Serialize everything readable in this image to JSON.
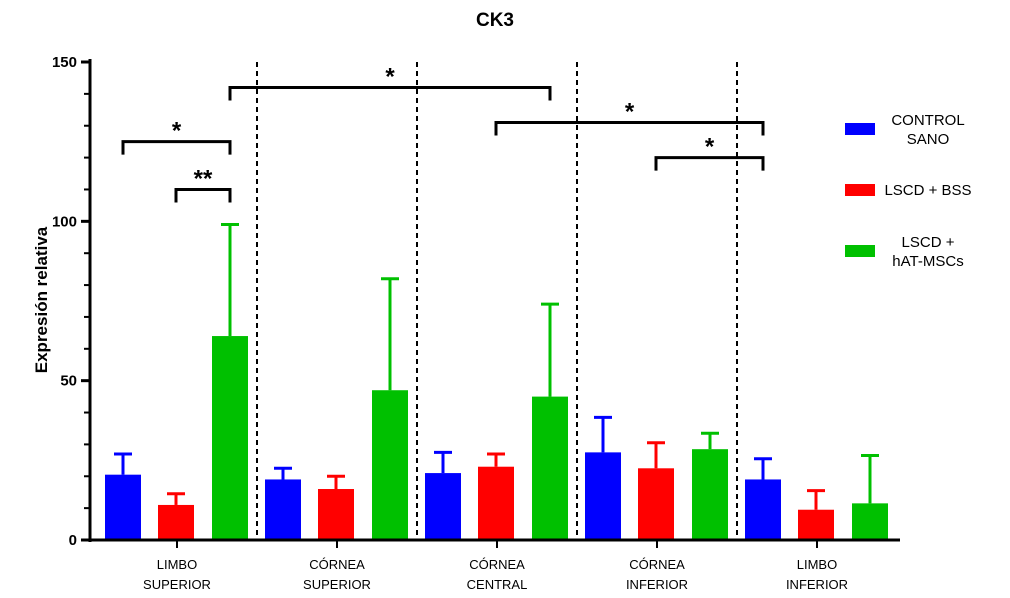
{
  "chart_data": {
    "type": "bar",
    "title": "CK3",
    "ylabel": "Expresión relativa",
    "xlabel": "",
    "ylim": [
      0,
      150
    ],
    "yticks": [
      0,
      50,
      100,
      150
    ],
    "categories": [
      [
        "LIMBO",
        "SUPERIOR"
      ],
      [
        "CÓRNEA",
        "SUPERIOR"
      ],
      [
        "CÓRNEA",
        "CENTRAL"
      ],
      [
        "CÓRNEA",
        "INFERIOR"
      ],
      [
        "LIMBO",
        "INFERIOR"
      ]
    ],
    "series": [
      {
        "name": "CONTROL\nSANO",
        "color": "#0000ff",
        "values": [
          20.5,
          19,
          21,
          27.5,
          19
        ],
        "errors": [
          6.5,
          3.5,
          6.5,
          11,
          6.5
        ]
      },
      {
        "name": "LSCD + BSS",
        "color": "#ff0000",
        "values": [
          11,
          16,
          23,
          22.5,
          9.5
        ],
        "errors": [
          3.5,
          4,
          4,
          8,
          6
        ]
      },
      {
        "name": "LSCD +\nhAT-MSCs",
        "color": "#00c000",
        "values": [
          64,
          47,
          45,
          28.5,
          11.5
        ],
        "errors": [
          35,
          35,
          29,
          5,
          15
        ]
      }
    ],
    "legend_position": "right",
    "grid": false,
    "significance": [
      {
        "from": [
          0,
          2
        ],
        "to": [
          2,
          2
        ],
        "label": "*",
        "y": 142
      },
      {
        "from": [
          0,
          0
        ],
        "to": [
          0,
          2
        ],
        "label": "*",
        "y": 125
      },
      {
        "from": [
          0,
          1
        ],
        "to": [
          0,
          2
        ],
        "label": "**",
        "y": 110
      },
      {
        "from": [
          2,
          1
        ],
        "to": [
          4,
          0
        ],
        "label": "*",
        "y": 131
      },
      {
        "from": [
          3,
          1
        ],
        "to": [
          4,
          0
        ],
        "label": "*",
        "y": 120
      }
    ]
  }
}
